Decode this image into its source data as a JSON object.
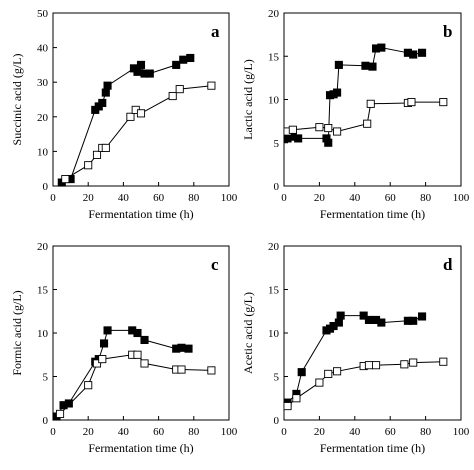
{
  "chart_data": [
    {
      "type": "line",
      "panel_label": "a",
      "xlabel": "Fermentation time (h)",
      "ylabel": "Succinic acid (g/L)",
      "xlim": [
        0,
        100
      ],
      "ylim": [
        0,
        50
      ],
      "xticks": [
        0,
        20,
        40,
        60,
        80,
        100
      ],
      "yticks": [
        0,
        10,
        20,
        30,
        40,
        50
      ],
      "series": [
        {
          "marker": "filled-square",
          "points": [
            [
              5,
              1
            ],
            [
              10,
              2
            ],
            [
              24,
              22
            ],
            [
              26,
              23
            ],
            [
              28,
              24
            ],
            [
              30,
              27
            ],
            [
              31,
              29
            ],
            [
              46,
              34
            ],
            [
              48,
              33
            ],
            [
              50,
              35
            ],
            [
              52,
              32.5
            ],
            [
              55,
              32.5
            ],
            [
              70,
              35
            ],
            [
              74,
              36.5
            ],
            [
              78,
              37
            ]
          ]
        },
        {
          "marker": "open-square",
          "points": [
            [
              7,
              2
            ],
            [
              20,
              6
            ],
            [
              25,
              9
            ],
            [
              28,
              11
            ],
            [
              30,
              11
            ],
            [
              44,
              20
            ],
            [
              47,
              22
            ],
            [
              50,
              21
            ],
            [
              68,
              26
            ],
            [
              72,
              28
            ],
            [
              90,
              29
            ]
          ]
        }
      ]
    },
    {
      "type": "line",
      "panel_label": "b",
      "xlabel": "Fermentation time (h)",
      "ylabel": "Lactic acid (g/L)",
      "xlim": [
        0,
        100
      ],
      "ylim": [
        0,
        20
      ],
      "xticks": [
        0,
        20,
        40,
        60,
        80,
        100
      ],
      "yticks": [
        0,
        5,
        10,
        15,
        20
      ],
      "series": [
        {
          "marker": "filled-square",
          "points": [
            [
              2,
              5.5
            ],
            [
              5,
              5.7
            ],
            [
              8,
              5.5
            ],
            [
              24,
              5.5
            ],
            [
              25,
              5
            ],
            [
              26,
              10.5
            ],
            [
              28,
              10.6
            ],
            [
              30,
              10.8
            ],
            [
              31,
              14
            ],
            [
              46,
              13.9
            ],
            [
              50,
              13.8
            ],
            [
              52,
              15.9
            ],
            [
              55,
              16
            ],
            [
              70,
              15.4
            ],
            [
              73,
              15.2
            ],
            [
              78,
              15.4
            ]
          ]
        },
        {
          "marker": "open-square",
          "points": [
            [
              2,
              6.3
            ],
            [
              5,
              6.5
            ],
            [
              20,
              6.8
            ],
            [
              25,
              6.7
            ],
            [
              30,
              6.3
            ],
            [
              47,
              7.2
            ],
            [
              49,
              9.5
            ],
            [
              70,
              9.6
            ],
            [
              72,
              9.7
            ],
            [
              90,
              9.7
            ]
          ]
        }
      ]
    },
    {
      "type": "line",
      "panel_label": "c",
      "xlabel": "Fermentation time (h)",
      "ylabel": "Formic acid (g/L)",
      "xlim": [
        0,
        100
      ],
      "ylim": [
        0,
        20
      ],
      "xticks": [
        0,
        20,
        40,
        60,
        80,
        100
      ],
      "yticks": [
        0,
        5,
        10,
        15,
        20
      ],
      "series": [
        {
          "marker": "filled-square",
          "points": [
            [
              2,
              0.4
            ],
            [
              6,
              1.7
            ],
            [
              9,
              1.9
            ],
            [
              24,
              6.7
            ],
            [
              26,
              7
            ],
            [
              29,
              8.8
            ],
            [
              31,
              10.3
            ],
            [
              45,
              10.3
            ],
            [
              48,
              10
            ],
            [
              52,
              9.2
            ],
            [
              70,
              8.2
            ],
            [
              73,
              8.3
            ],
            [
              77,
              8.2
            ]
          ]
        },
        {
          "marker": "open-square",
          "points": [
            [
              4,
              0.7
            ],
            [
              20,
              4
            ],
            [
              25,
              6.5
            ],
            [
              28,
              7
            ],
            [
              45,
              7.5
            ],
            [
              48,
              7.5
            ],
            [
              52,
              6.5
            ],
            [
              70,
              5.8
            ],
            [
              73,
              5.8
            ],
            [
              90,
              5.7
            ]
          ]
        }
      ]
    },
    {
      "type": "line",
      "panel_label": "d",
      "xlabel": "Fermentation time (h)",
      "ylabel": "Acetic acid (g/L)",
      "xlim": [
        0,
        100
      ],
      "ylim": [
        0,
        20
      ],
      "xticks": [
        0,
        20,
        40,
        60,
        80,
        100
      ],
      "yticks": [
        0,
        5,
        10,
        15,
        20
      ],
      "series": [
        {
          "marker": "filled-square",
          "points": [
            [
              2,
              2
            ],
            [
              7,
              3
            ],
            [
              10,
              5.5
            ],
            [
              24,
              10.3
            ],
            [
              26,
              10.5
            ],
            [
              28,
              10.8
            ],
            [
              31,
              11.2
            ],
            [
              32,
              12
            ],
            [
              45,
              12
            ],
            [
              48,
              11.5
            ],
            [
              52,
              11.5
            ],
            [
              55,
              11.2
            ],
            [
              70,
              11.4
            ],
            [
              73,
              11.4
            ],
            [
              78,
              11.9
            ]
          ]
        },
        {
          "marker": "open-square",
          "points": [
            [
              2,
              1.6
            ],
            [
              7,
              2.5
            ],
            [
              20,
              4.3
            ],
            [
              25,
              5.3
            ],
            [
              30,
              5.6
            ],
            [
              45,
              6.2
            ],
            [
              48,
              6.3
            ],
            [
              52,
              6.3
            ],
            [
              68,
              6.4
            ],
            [
              73,
              6.6
            ],
            [
              90,
              6.7
            ]
          ]
        }
      ]
    }
  ]
}
